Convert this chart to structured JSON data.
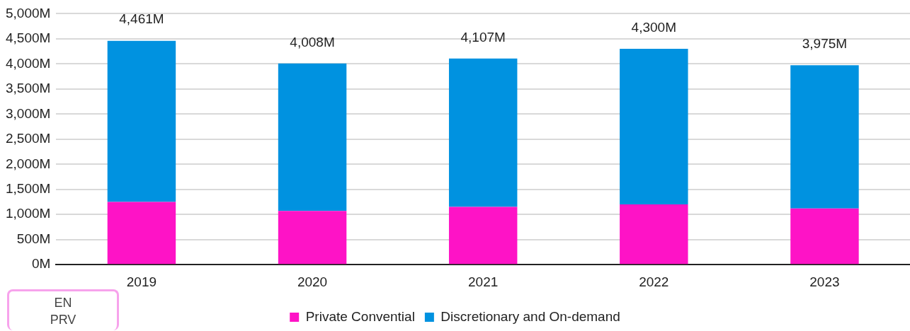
{
  "chart_data": {
    "type": "bar",
    "stacked": true,
    "categories": [
      "2019",
      "2020",
      "2021",
      "2022",
      "2023"
    ],
    "series": [
      {
        "name": "Private Convential",
        "color": "#fe13c6",
        "values": [
          1250,
          1070,
          1150,
          1200,
          1120
        ]
      },
      {
        "name": "Discretionary and On-demand",
        "color": "#0092e0",
        "values": [
          3211,
          2938,
          2957,
          3100,
          2855
        ]
      }
    ],
    "totals": [
      "4,461M",
      "4,008M",
      "4,107M",
      "4,300M",
      "3,975M"
    ],
    "ylim": [
      0,
      5000
    ],
    "yticks": [
      {
        "value": 0,
        "label": "0M"
      },
      {
        "value": 500,
        "label": "500M"
      },
      {
        "value": 1000,
        "label": "1,000M"
      },
      {
        "value": 1500,
        "label": "1,500M"
      },
      {
        "value": 2000,
        "label": "2,000M"
      },
      {
        "value": 2500,
        "label": "2,500M"
      },
      {
        "value": 3000,
        "label": "3,000M"
      },
      {
        "value": 3500,
        "label": "3,500M"
      },
      {
        "value": 4000,
        "label": "4,000M"
      },
      {
        "value": 4500,
        "label": "4,500M"
      },
      {
        "value": 5000,
        "label": "5,000M"
      }
    ],
    "grid": "y",
    "legend": "bottom",
    "annotations": [
      "EN",
      "PRV"
    ]
  }
}
